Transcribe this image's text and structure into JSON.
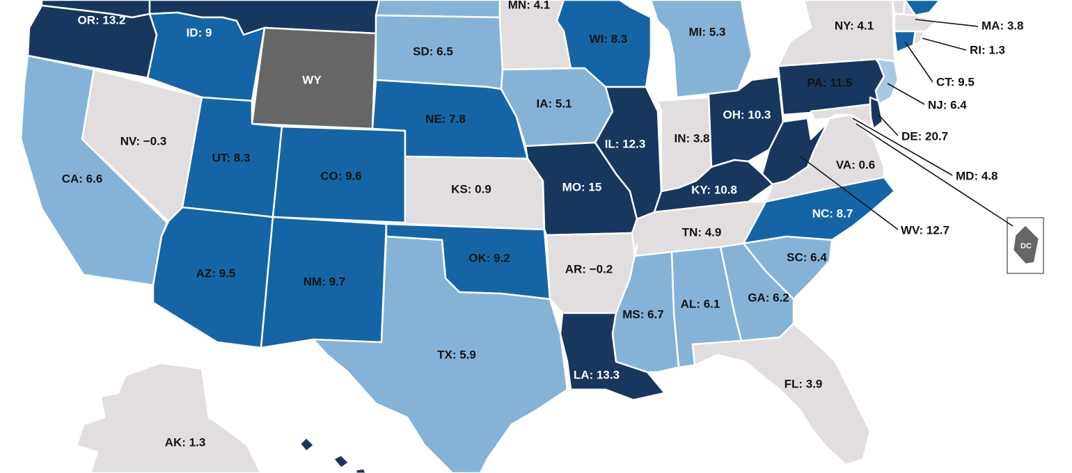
{
  "colors": {
    "darkest": "#17375e",
    "dark": "#1565a6",
    "light": "#84b3d7",
    "lighter": "#a8c9e6",
    "neutral": "#e2dedf",
    "nodata": "#666666",
    "border": "#ffffff"
  },
  "map_data": {
    "states": [
      {
        "abbr": "OR",
        "label": "OR: 13.2",
        "value": 13.2,
        "tier": "darkest"
      },
      {
        "abbr": "WA",
        "label": "",
        "value": null,
        "tier": "darkest"
      },
      {
        "abbr": "MT",
        "label": "",
        "value": null,
        "tier": "darkest"
      },
      {
        "abbr": "ID",
        "label": "ID: 9",
        "value": 9,
        "tier": "dark"
      },
      {
        "abbr": "WY",
        "label": "WY",
        "value": null,
        "tier": "nodata"
      },
      {
        "abbr": "CA",
        "label": "CA: 6.6",
        "value": 6.6,
        "tier": "light"
      },
      {
        "abbr": "NV",
        "label": "NV: −0.3",
        "value": -0.3,
        "tier": "neutral"
      },
      {
        "abbr": "UT",
        "label": "UT: 8.3",
        "value": 8.3,
        "tier": "dark"
      },
      {
        "abbr": "CO",
        "label": "CO: 9.6",
        "value": 9.6,
        "tier": "dark"
      },
      {
        "abbr": "AZ",
        "label": "AZ: 9.5",
        "value": 9.5,
        "tier": "dark"
      },
      {
        "abbr": "NM",
        "label": "NM: 9.7",
        "value": 9.7,
        "tier": "dark"
      },
      {
        "abbr": "ND",
        "label": "",
        "value": null,
        "tier": "light"
      },
      {
        "abbr": "SD",
        "label": "SD: 6.5",
        "value": 6.5,
        "tier": "light"
      },
      {
        "abbr": "NE",
        "label": "NE: 7.8",
        "value": 7.8,
        "tier": "dark"
      },
      {
        "abbr": "KS",
        "label": "KS: 0.9",
        "value": 0.9,
        "tier": "neutral"
      },
      {
        "abbr": "OK",
        "label": "OK: 9.2",
        "value": 9.2,
        "tier": "dark"
      },
      {
        "abbr": "TX",
        "label": "TX: 5.9",
        "value": 5.9,
        "tier": "light"
      },
      {
        "abbr": "MN",
        "label": "MN: 4.1",
        "value": 4.1,
        "tier": "neutral"
      },
      {
        "abbr": "IA",
        "label": "IA: 5.1",
        "value": 5.1,
        "tier": "light"
      },
      {
        "abbr": "MO",
        "label": "MO: 15",
        "value": 15,
        "tier": "darkest"
      },
      {
        "abbr": "AR",
        "label": "AR: −0.2",
        "value": -0.2,
        "tier": "neutral"
      },
      {
        "abbr": "LA",
        "label": "LA: 13.3",
        "value": 13.3,
        "tier": "darkest"
      },
      {
        "abbr": "WI",
        "label": "WI: 8.3",
        "value": 8.3,
        "tier": "dark"
      },
      {
        "abbr": "IL",
        "label": "IL: 12.3",
        "value": 12.3,
        "tier": "darkest"
      },
      {
        "abbr": "MI",
        "label": "MI: 5.3",
        "value": 5.3,
        "tier": "light"
      },
      {
        "abbr": "IN",
        "label": "IN: 3.8",
        "value": 3.8,
        "tier": "neutral"
      },
      {
        "abbr": "OH",
        "label": "OH: 10.3",
        "value": 10.3,
        "tier": "darkest"
      },
      {
        "abbr": "KY",
        "label": "KY: 10.8",
        "value": 10.8,
        "tier": "darkest"
      },
      {
        "abbr": "TN",
        "label": "TN: 4.9",
        "value": 4.9,
        "tier": "neutral"
      },
      {
        "abbr": "MS",
        "label": "MS: 6.7",
        "value": 6.7,
        "tier": "light"
      },
      {
        "abbr": "AL",
        "label": "AL: 6.1",
        "value": 6.1,
        "tier": "light"
      },
      {
        "abbr": "GA",
        "label": "GA: 6.2",
        "value": 6.2,
        "tier": "light"
      },
      {
        "abbr": "FL",
        "label": "FL: 3.9",
        "value": 3.9,
        "tier": "neutral"
      },
      {
        "abbr": "SC",
        "label": "SC: 6.4",
        "value": 6.4,
        "tier": "light"
      },
      {
        "abbr": "NC",
        "label": "NC: 8.7",
        "value": 8.7,
        "tier": "dark"
      },
      {
        "abbr": "VA",
        "label": "VA: 0.6",
        "value": 0.6,
        "tier": "neutral"
      },
      {
        "abbr": "WV",
        "label": "WV: 12.7",
        "value": 12.7,
        "tier": "darkest"
      },
      {
        "abbr": "PA",
        "label": "PA: 11.5",
        "value": 11.5,
        "tier": "darkest"
      },
      {
        "abbr": "NY",
        "label": "NY: 4.1",
        "value": 4.1,
        "tier": "neutral"
      },
      {
        "abbr": "VT",
        "label": "",
        "value": null,
        "tier": "neutral"
      },
      {
        "abbr": "NH",
        "label": "",
        "value": null,
        "tier": "neutral"
      },
      {
        "abbr": "ME",
        "label": "",
        "value": null,
        "tier": "dark"
      },
      {
        "abbr": "MA",
        "label": "MA: 3.8",
        "value": 3.8,
        "tier": "neutral"
      },
      {
        "abbr": "RI",
        "label": "RI: 1.3",
        "value": 1.3,
        "tier": "neutral"
      },
      {
        "abbr": "CT",
        "label": "CT: 9.5",
        "value": 9.5,
        "tier": "dark"
      },
      {
        "abbr": "NJ",
        "label": "NJ: 6.4",
        "value": 6.4,
        "tier": "lighter"
      },
      {
        "abbr": "DE",
        "label": "DE: 20.7",
        "value": 20.7,
        "tier": "darkest"
      },
      {
        "abbr": "MD",
        "label": "MD: 4.8",
        "value": 4.8,
        "tier": "neutral"
      },
      {
        "abbr": "DC",
        "label": "DC",
        "value": null,
        "tier": "nodata"
      },
      {
        "abbr": "AK",
        "label": "AK: 1.3",
        "value": 1.3,
        "tier": "neutral"
      },
      {
        "abbr": "HI",
        "label": "",
        "value": null,
        "tier": "darkest"
      }
    ]
  }
}
